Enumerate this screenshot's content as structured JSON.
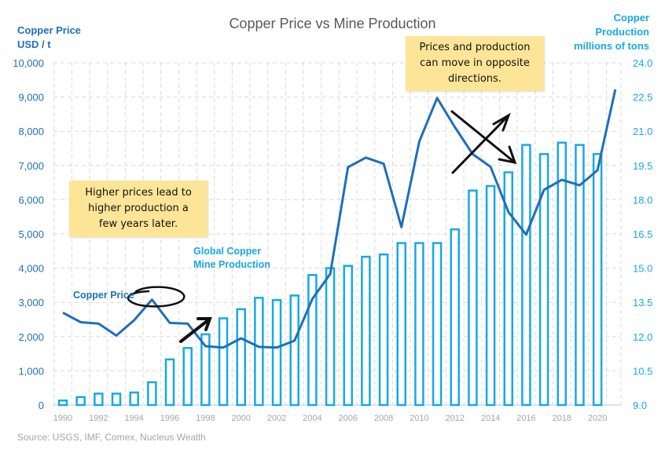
{
  "chart_data": {
    "type": "bar+line",
    "title": "Copper Price vs Mine Production",
    "left_axis_label": [
      "Copper Price",
      "USD / t"
    ],
    "right_axis_label": [
      "Copper",
      "Production",
      "millions of tons"
    ],
    "left_ylim": [
      0,
      10000
    ],
    "right_ylim": [
      9.0,
      24.0
    ],
    "left_ticks": [
      "0",
      "1,000",
      "2,000",
      "3,000",
      "4,000",
      "5,000",
      "6,000",
      "7,000",
      "8,000",
      "9,000",
      "10,000"
    ],
    "right_ticks": [
      "9.0",
      "10.5",
      "12.0",
      "13.5",
      "15.0",
      "16.5",
      "18.0",
      "19.5",
      "21.0",
      "22.5",
      "24.0"
    ],
    "x_ticks": [
      "1990",
      "1992",
      "1994",
      "1996",
      "1998",
      "2000",
      "2002",
      "2004",
      "2006",
      "2008",
      "2010",
      "2012",
      "2014",
      "2016",
      "2018",
      "2020"
    ],
    "grid": true,
    "series": [
      {
        "name": "Global Copper Mine Production",
        "type": "bar",
        "axis": "right",
        "color": "#16a9e6",
        "x": [
          1990,
          1991,
          1992,
          1993,
          1994,
          1995,
          1996,
          1997,
          1998,
          1999,
          2000,
          2001,
          2002,
          2003,
          2004,
          2005,
          2006,
          2007,
          2008,
          2009,
          2010,
          2011,
          2012,
          2013,
          2014,
          2015,
          2016,
          2017,
          2018,
          2019,
          2020
        ],
        "values": [
          9.2,
          9.35,
          9.5,
          9.5,
          9.55,
          10.0,
          11.0,
          11.5,
          12.1,
          12.8,
          13.2,
          13.7,
          13.6,
          13.8,
          14.7,
          15.0,
          15.1,
          15.5,
          15.6,
          16.1,
          16.1,
          16.1,
          16.7,
          18.4,
          18.6,
          19.2,
          20.4,
          20.0,
          20.5,
          20.4,
          20.0
        ]
      },
      {
        "name": "Copper Price",
        "type": "line",
        "axis": "left",
        "color": "#1f6fb8",
        "x": [
          1990,
          1991,
          1992,
          1993,
          1994,
          1995,
          1996,
          1997,
          1998,
          1999,
          2000,
          2001,
          2002,
          2003,
          2004,
          2005,
          2006,
          2007,
          2008,
          2009,
          2010,
          2011,
          2012,
          2013,
          2014,
          2015,
          2016,
          2017,
          2018,
          2019,
          2020,
          2021
        ],
        "values": [
          2700,
          2420,
          2380,
          2030,
          2480,
          3080,
          2400,
          2380,
          1720,
          1680,
          1950,
          1700,
          1680,
          1880,
          3100,
          3830,
          6950,
          7230,
          7050,
          5200,
          7700,
          8970,
          8120,
          7330,
          6960,
          5640,
          4980,
          6290,
          6580,
          6420,
          6860,
          9220
        ]
      }
    ],
    "source": "Source: USGS, IMF, Comex, Nucleus Wealth"
  },
  "annotations": {
    "note_left": [
      "Higher prices lead to",
      "higher production a",
      "few years later."
    ],
    "note_right": [
      "Prices and production",
      "can move in opposite",
      "directions."
    ],
    "bar_label": [
      "Global Copper",
      "Mine Production"
    ],
    "line_label": "Copper Price"
  }
}
